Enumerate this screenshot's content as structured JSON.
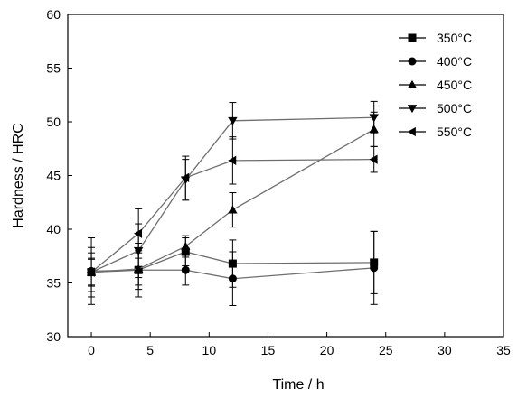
{
  "chart_data": {
    "type": "line",
    "title": "",
    "xlabel": "Time / h",
    "ylabel": "Hardness / HRC",
    "xlim": [
      -2,
      35
    ],
    "ylim": [
      30,
      60
    ],
    "xticks": [
      0,
      5,
      10,
      15,
      20,
      25,
      30,
      35
    ],
    "yticks": [
      30,
      35,
      40,
      45,
      50,
      55,
      60
    ],
    "grid": false,
    "legend_position": "top-right",
    "x": [
      0,
      4,
      8,
      12,
      24
    ],
    "series": [
      {
        "name": "350°C",
        "marker": "square",
        "color": "#000000",
        "values": [
          36.0,
          36.2,
          37.9,
          36.8,
          36.9
        ],
        "errors": [
          1.2,
          1.8,
          1.3,
          2.2,
          2.9
        ]
      },
      {
        "name": "400°C",
        "marker": "circle",
        "color": "#000000",
        "values": [
          36.1,
          36.2,
          36.2,
          35.4,
          36.4
        ],
        "errors": [
          3.1,
          2.5,
          1.4,
          2.5,
          3.4
        ]
      },
      {
        "name": "450°C",
        "marker": "triangle-up",
        "color": "#000000",
        "values": [
          36.0,
          36.3,
          38.4,
          41.8,
          49.3
        ],
        "errors": [
          1.8,
          1.5,
          1.0,
          1.6,
          1.6
        ]
      },
      {
        "name": "500°C",
        "marker": "triangle-down",
        "color": "#000000",
        "values": [
          36.0,
          38.0,
          44.6,
          50.1,
          50.4
        ],
        "errors": [
          2.3,
          2.5,
          1.9,
          1.7,
          1.5
        ]
      },
      {
        "name": "550°C",
        "marker": "triangle-left",
        "color": "#000000",
        "values": [
          36.0,
          39.6,
          44.8,
          46.4,
          46.5
        ],
        "errors": [
          1.3,
          2.3,
          2.0,
          2.2,
          1.2
        ]
      }
    ]
  }
}
